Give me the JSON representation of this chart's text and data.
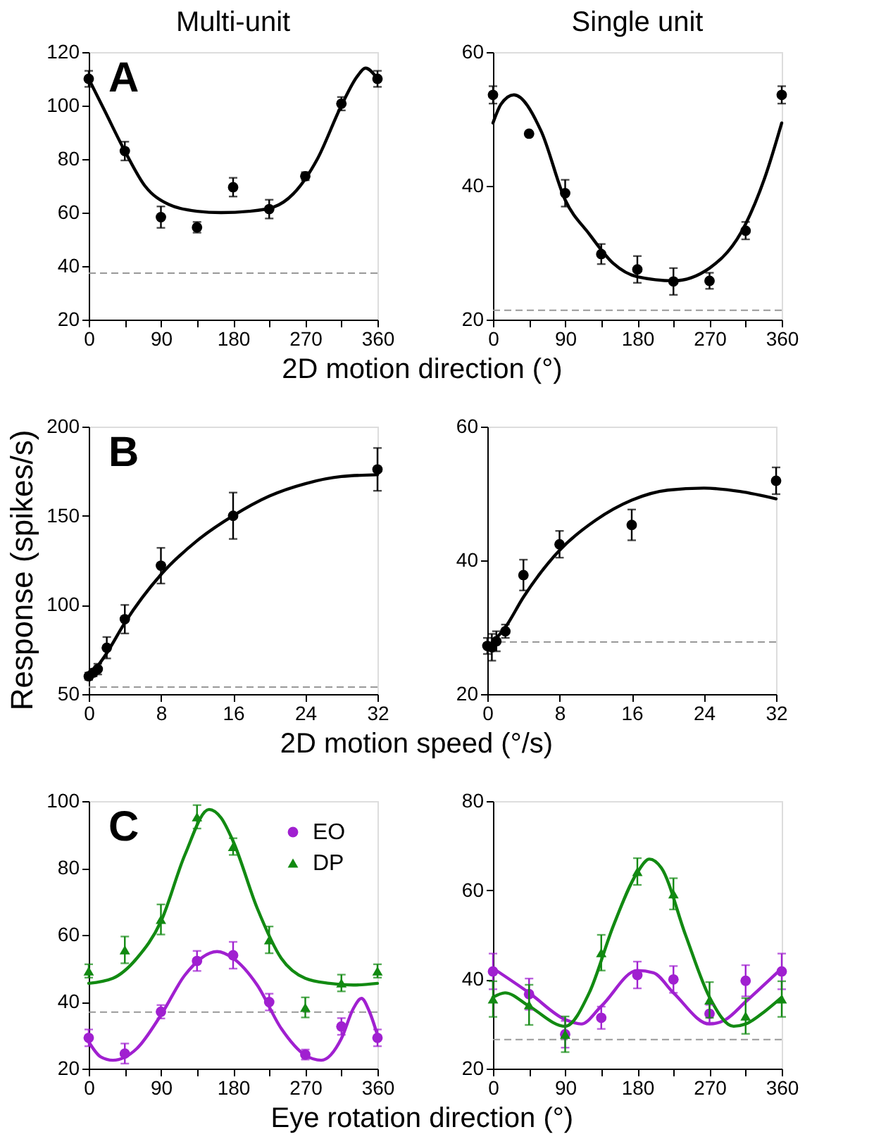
{
  "chart_data": [
    {
      "type": "scatter",
      "title": "Multi-unit",
      "xlabel": "2D motion direction (°)",
      "annotations": [
        "A"
      ],
      "xlim": [
        0,
        360
      ],
      "xticks": [
        0,
        {
          "value": 45,
          "label": null
        },
        90,
        {
          "value": 135,
          "label": null
        },
        180,
        {
          "value": 225,
          "label": null
        },
        270,
        {
          "value": 315,
          "label": null
        },
        360
      ],
      "ylim": [
        20,
        120
      ],
      "yticks": [
        20,
        40,
        60,
        80,
        100,
        120
      ],
      "ref_lines": [
        {
          "axis": "y",
          "value": 37.4,
          "color": "#999999",
          "line_style": "dashed"
        }
      ],
      "series": [
        {
          "type": "line",
          "color": "#000000",
          "x": [
            0,
            20,
            45,
            70,
            100,
            135,
            165,
            200,
            230,
            255,
            285,
            315,
            335,
            345,
            360
          ],
          "values": [
            110,
            98,
            83,
            70,
            63,
            60.5,
            60,
            60.5,
            62,
            67,
            80,
            100,
            111,
            114,
            110
          ]
        },
        {
          "type": "scatter",
          "color": "#000000",
          "marker": "circle",
          "x": [
            0,
            45,
            90,
            135,
            180,
            225,
            270,
            315,
            360
          ],
          "values": [
            110,
            83,
            58.3,
            54.5,
            69.5,
            61.3,
            73.6,
            100.7,
            110
          ],
          "errors": [
            3,
            3.5,
            4,
            2,
            3.5,
            3.5,
            1.5,
            2.5,
            3
          ]
        }
      ]
    },
    {
      "type": "scatter",
      "title": "Single unit",
      "xlim": [
        0,
        360
      ],
      "xticks": [
        0,
        {
          "value": 45,
          "label": null
        },
        90,
        {
          "value": 135,
          "label": null
        },
        180,
        {
          "value": 225,
          "label": null
        },
        270,
        {
          "value": 315,
          "label": null
        },
        360
      ],
      "ylim": [
        20,
        60
      ],
      "yticks": [
        20,
        40,
        60
      ],
      "ref_lines": [
        {
          "axis": "y",
          "value": 21.4,
          "color": "#999999",
          "line_style": "dashed"
        }
      ],
      "series": [
        {
          "type": "line",
          "color": "#000000",
          "x": [
            0,
            10,
            26,
            60,
            90,
            120,
            150,
            180,
            225,
            270,
            315,
            340,
            360
          ],
          "values": [
            49.4,
            52.2,
            53.6,
            48.2,
            37.9,
            32.8,
            28.4,
            26.4,
            25.8,
            27.7,
            34.3,
            41.6,
            49.4
          ]
        },
        {
          "type": "scatter",
          "color": "#000000",
          "marker": "circle",
          "x": [
            0,
            45,
            90,
            135,
            180,
            225,
            270,
            315,
            360
          ],
          "values": [
            53.6,
            47.8,
            38.9,
            29.8,
            27.5,
            25.7,
            25.8,
            33.3,
            53.6
          ],
          "errors": [
            1.3,
            null,
            2,
            1.5,
            2,
            2,
            1.2,
            1.3,
            1.3
          ]
        }
      ]
    },
    {
      "type": "scatter",
      "xlabel": "2D motion speed (°/s)",
      "ylabel": "Response (spikes/s)",
      "annotations": [
        "B"
      ],
      "xlim": [
        0,
        32
      ],
      "xticks": [
        0,
        8,
        16,
        24,
        32
      ],
      "ylim": [
        50,
        200
      ],
      "yticks": [
        50,
        100,
        150,
        200
      ],
      "ref_lines": [
        {
          "axis": "y",
          "value": 53.9,
          "color": "#999999",
          "line_style": "dashed"
        }
      ],
      "series": [
        {
          "type": "line",
          "color": "#000000",
          "x": [
            0,
            2,
            4,
            8,
            12,
            16,
            20,
            24,
            28,
            32
          ],
          "values": [
            59,
            73,
            90,
            117,
            136,
            150,
            161,
            168,
            172,
            173
          ]
        },
        {
          "type": "scatter",
          "color": "#000000",
          "marker": "circle",
          "x": [
            0,
            0.5,
            1,
            2,
            4,
            8,
            16,
            32
          ],
          "values": [
            60,
            62,
            64,
            76,
            92,
            122,
            150,
            176
          ],
          "errors": [
            2,
            2,
            3,
            6,
            8,
            10,
            13,
            12
          ]
        }
      ]
    },
    {
      "type": "scatter",
      "xlim": [
        0,
        32
      ],
      "xticks": [
        0,
        8,
        16,
        24,
        32
      ],
      "ylim": [
        20,
        60
      ],
      "yticks": [
        20,
        40,
        60
      ],
      "ref_lines": [
        {
          "axis": "y",
          "value": 27.8,
          "color": "#999999",
          "line_style": "dashed"
        }
      ],
      "series": [
        {
          "type": "line",
          "color": "#000000",
          "x": [
            0,
            2,
            4,
            8,
            12,
            16,
            20,
            24,
            28,
            32
          ],
          "values": [
            27,
            30,
            34.5,
            41.5,
            46,
            49,
            50.5,
            50.8,
            50.3,
            49.2
          ]
        },
        {
          "type": "scatter",
          "color": "#000000",
          "marker": "circle",
          "x": [
            0,
            0.5,
            1,
            2,
            4,
            8,
            16,
            32
          ],
          "values": [
            27.2,
            27,
            27.9,
            29.4,
            37.8,
            42.4,
            45.3,
            51.9
          ],
          "errors": [
            1.2,
            2,
            1.5,
            1,
            2.3,
            2,
            2.3,
            2
          ]
        }
      ]
    },
    {
      "type": "scatter",
      "xlabel": "Eye rotation direction (°)",
      "annotations": [
        "C"
      ],
      "legend": "top right",
      "xlim": [
        0,
        360
      ],
      "xticks": [
        0,
        {
          "value": 45,
          "label": null
        },
        90,
        {
          "value": 135,
          "label": null
        },
        180,
        {
          "value": 225,
          "label": null
        },
        270,
        {
          "value": 315,
          "label": null
        },
        360
      ],
      "ylim": [
        20,
        100
      ],
      "yticks": [
        20,
        40,
        60,
        80,
        100
      ],
      "ref_lines": [
        {
          "axis": "y",
          "value": 36.9,
          "color": "#999999",
          "line_style": "dashed"
        }
      ],
      "series": [
        {
          "type": "line",
          "color": "#128a12",
          "x": [
            0,
            30,
            60,
            90,
            120,
            150,
            165,
            180,
            210,
            240,
            270,
            300,
            330,
            360
          ],
          "values": [
            45.5,
            47,
            53,
            64,
            84,
            97.5,
            95,
            88,
            68,
            53,
            47,
            45.5,
            45,
            45.5
          ]
        },
        {
          "type": "line",
          "color": "#a020d0",
          "x": [
            0,
            15,
            30,
            60,
            90,
            120,
            160,
            180,
            210,
            240,
            270,
            290,
            315,
            330,
            340,
            350,
            360
          ],
          "values": [
            28,
            23.5,
            22.5,
            26,
            36,
            48,
            55,
            53,
            45,
            32,
            24,
            22.5,
            29,
            38,
            41,
            37,
            30
          ]
        },
        {
          "type": "scatter",
          "name": "EO",
          "color": "#a020d0",
          "marker": "circle",
          "x": [
            0,
            45,
            90,
            135,
            180,
            225,
            270,
            315,
            360
          ],
          "values": [
            29.2,
            24.5,
            37,
            52.2,
            53.9,
            39.9,
            24.2,
            32.6,
            29.2
          ],
          "errors": [
            2.5,
            3,
            2,
            3,
            4,
            2.5,
            1.5,
            2.5,
            2.5
          ]
        },
        {
          "type": "scatter",
          "name": "DP",
          "color": "#128a12",
          "marker": "triangle",
          "x": [
            0,
            45,
            90,
            135,
            180,
            225,
            270,
            315,
            360
          ],
          "values": [
            49.2,
            55.5,
            64.6,
            95.3,
            86.4,
            58.5,
            38.3,
            45.6,
            49.2
          ],
          "errors": [
            2,
            4,
            4.5,
            3.5,
            2.5,
            4,
            3,
            2.5,
            2
          ]
        }
      ]
    },
    {
      "type": "scatter",
      "xlim": [
        0,
        360
      ],
      "xticks": [
        0,
        {
          "value": 45,
          "label": null
        },
        90,
        {
          "value": 135,
          "label": null
        },
        180,
        {
          "value": 225,
          "label": null
        },
        270,
        {
          "value": 315,
          "label": null
        },
        360
      ],
      "ylim": [
        20,
        80
      ],
      "yticks": [
        20,
        40,
        60,
        80
      ],
      "ref_lines": [
        {
          "axis": "y",
          "value": 26.5,
          "color": "#999999",
          "line_style": "dashed"
        }
      ],
      "series": [
        {
          "type": "line",
          "color": "#a020d0",
          "x": [
            0,
            45,
            90,
            110,
            135,
            180,
            200,
            225,
            270,
            290,
            315,
            360
          ],
          "values": [
            42.5,
            37,
            31,
            30,
            34,
            42,
            41.5,
            37,
            30,
            31,
            35,
            42.5
          ]
        },
        {
          "type": "line",
          "color": "#128a12",
          "x": [
            0,
            15,
            45,
            90,
            120,
            150,
            180,
            195,
            210,
            240,
            270,
            300,
            315,
            340,
            360
          ],
          "values": [
            36,
            37,
            34,
            29.5,
            37,
            52,
            64,
            67,
            65,
            50,
            36,
            29.5,
            30,
            33,
            36
          ]
        },
        {
          "type": "scatter",
          "color": "#a020d0",
          "marker": "circle",
          "x": [
            0,
            45,
            90,
            135,
            180,
            225,
            270,
            315,
            360
          ],
          "values": [
            41.8,
            36.7,
            27.7,
            31.4,
            41,
            40,
            32.3,
            39.7,
            41.8
          ],
          "errors": [
            4,
            3.5,
            3,
            2.5,
            3,
            3,
            2,
            3.5,
            4
          ]
        },
        {
          "type": "scatter",
          "color": "#128a12",
          "marker": "triangle",
          "x": [
            0,
            45,
            90,
            135,
            180,
            225,
            270,
            315,
            360
          ],
          "values": [
            35.6,
            34.3,
            27.7,
            46,
            64.2,
            59.2,
            35.4,
            31.8,
            35.6
          ],
          "errors": [
            4,
            4.5,
            4,
            4,
            3,
            3.5,
            4,
            4,
            4
          ]
        }
      ]
    }
  ]
}
